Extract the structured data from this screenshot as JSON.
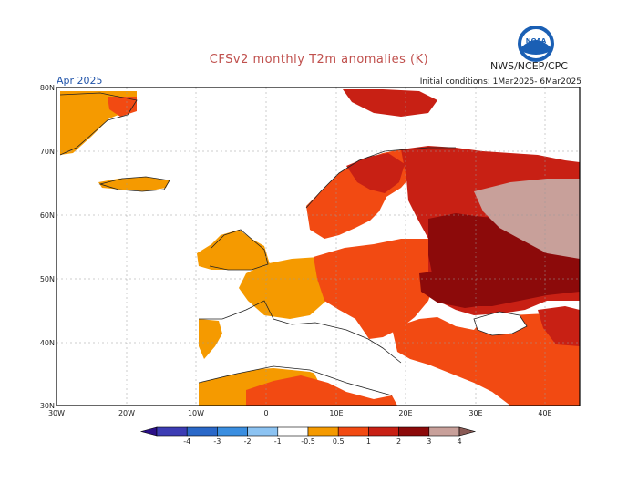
{
  "header": {
    "title": "CFSv2 monthly T2m anomalies (K)",
    "valid_month": "Apr 2025",
    "initial_conditions": "Initial conditions: 1Mar2025- 6Mar2025",
    "agency_label": "NWS/NCEP/CPC",
    "logo_text": "NOAA"
  },
  "map": {
    "lat_labels": [
      "80N",
      "70N",
      "60N",
      "50N",
      "40N",
      "30N"
    ],
    "lon_labels": [
      "30W",
      "20W",
      "10W",
      "0",
      "10E",
      "20E",
      "30E",
      "40E"
    ],
    "region": {
      "lon_min": -30,
      "lon_max": 45,
      "lat_min": 30,
      "lat_max": 80
    }
  },
  "colorbar": {
    "colors": [
      "#2b0f87",
      "#3c3cb4",
      "#2a68c8",
      "#3a8ee0",
      "#8cc3f2",
      "#ffffff",
      "#f59a00",
      "#f24a12",
      "#c82014",
      "#8c0a0a",
      "#c8a09a",
      "#8a5a55"
    ],
    "tick_labels": [
      "-4",
      "-3",
      "-2",
      "-1",
      "-0.5",
      "0.5",
      "1",
      "2",
      "3",
      "4"
    ]
  },
  "legend_colors": {
    "c05_1": "#f59a00",
    "c1_2": "#f24a12",
    "c2_3": "#c82014",
    "c3_4": "#8c0a0a",
    "c4plus": "#c8a09a"
  }
}
